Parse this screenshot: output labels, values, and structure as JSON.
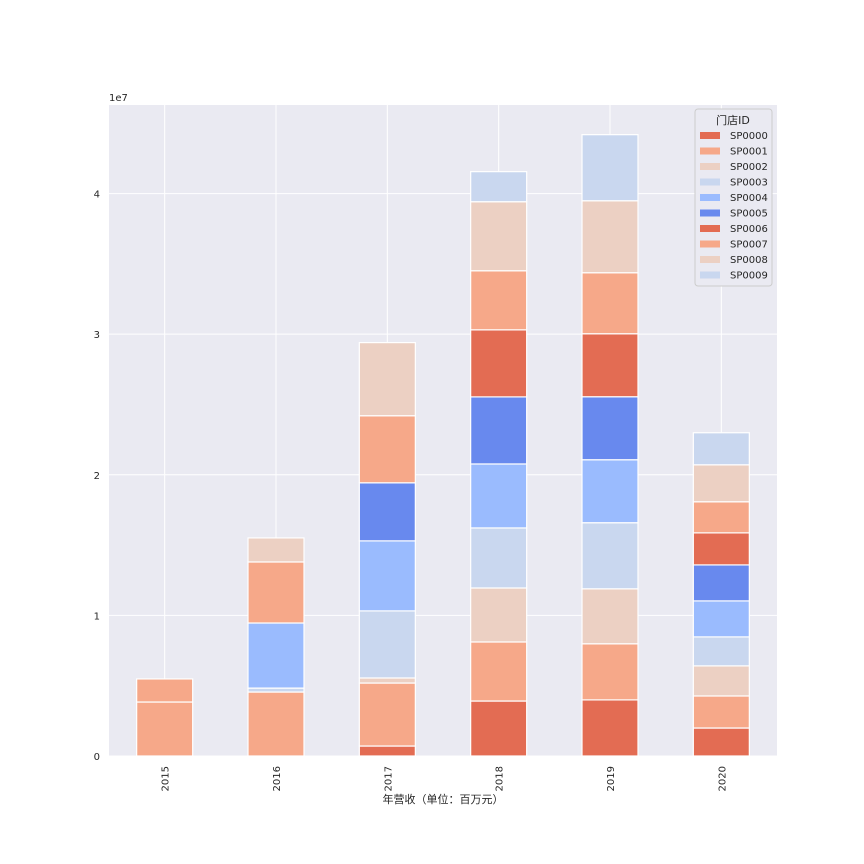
{
  "chart_data": {
    "type": "bar",
    "stacked": true,
    "title": "",
    "xlabel": "年营收（单位：百万元）",
    "ylabel": "",
    "y_offset_label": "1e7",
    "ylim": [
      0,
      46300000
    ],
    "yticks": [
      0,
      10000000,
      20000000,
      30000000,
      40000000
    ],
    "ytick_labels": [
      "0",
      "1",
      "2",
      "3",
      "4"
    ],
    "categories": [
      "2015",
      "2016",
      "2017",
      "2018",
      "2019",
      "2020"
    ],
    "grid": true,
    "legend": {
      "title": "门店ID",
      "placement": "top-right"
    },
    "series": [
      {
        "name": "SP0000",
        "color": "#e36c53",
        "values": [
          0,
          0,
          710000,
          3910000,
          3990000,
          1990000
        ]
      },
      {
        "name": "SP0001",
        "color": "#f6a889",
        "values": [
          3840000,
          4550000,
          4480000,
          4200000,
          3990000,
          2280000
        ]
      },
      {
        "name": "SP0002",
        "color": "#ecd0c3",
        "values": [
          0,
          0,
          360000,
          3840000,
          3910000,
          2140000
        ]
      },
      {
        "name": "SP0003",
        "color": "#c9d7ef",
        "values": [
          0,
          280000,
          4770000,
          4270000,
          4700000,
          2060000
        ]
      },
      {
        "name": "SP0004",
        "color": "#9abbfe",
        "values": [
          0,
          4630000,
          4980000,
          4550000,
          4480000,
          2560000
        ]
      },
      {
        "name": "SP0005",
        "color": "#6889ee",
        "values": [
          0,
          0,
          4130000,
          4770000,
          4480000,
          2560000
        ]
      },
      {
        "name": "SP0006",
        "color": "#e36c53",
        "values": [
          0,
          0,
          0,
          4770000,
          4480000,
          2280000
        ]
      },
      {
        "name": "SP0007",
        "color": "#f6a889",
        "values": [
          1640000,
          4340000,
          4770000,
          4200000,
          4340000,
          2210000
        ]
      },
      {
        "name": "SP0008",
        "color": "#ecd0c3",
        "values": [
          0,
          1710000,
          5200000,
          4910000,
          5120000,
          2630000
        ]
      },
      {
        "name": "SP0009",
        "color": "#c9d7ef",
        "values": [
          0,
          0,
          0,
          2140000,
          4700000,
          2280000
        ]
      }
    ]
  }
}
